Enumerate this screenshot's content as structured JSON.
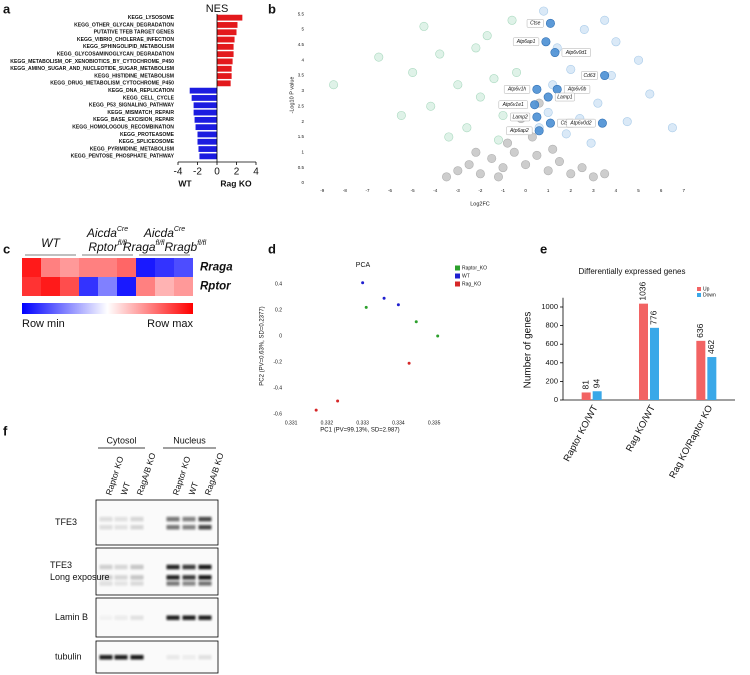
{
  "chart_data": [
    {
      "label": "a",
      "type": "bar",
      "orientation": "horizontal",
      "title": "NES",
      "categories": [
        "KEGG_LYSOSOME",
        "KEGG_OTHER_GLYCAN_DEGRADATION",
        "PUTATIVE TFEB TARGET GENES",
        "KEGG_VIBRIO_CHOLERAE_INFECTION",
        "KEGG_SPHINGOLIPID_METABOLISM",
        "KEGG_GLYCOSAMINOGLYCAN_DEGRADATION",
        "KEGG_METABOLISM_OF_XENOBIOTICS_BY_CYTOCHROME_P450",
        "KEGG_AMINO_SUGAR_AND_NUCLEOTIDE_SUGAR_METABOLISM",
        "KEGG_HISTIDINE_METABOLISM",
        "KEGG_DRUG_METABOLISM_CYTOCHROME_P450",
        "KEGG_DNA_REPLICATION",
        "KEGG_CELL_CYCLE",
        "KEGG_P53_SIGNALING_PATHWAY",
        "KEGG_MISMATCH_REPAIR",
        "KEGG_BASE_EXCISION_REPAIR",
        "KEGG_HOMOLOGOUS_RECOMBINATION",
        "KEGG_PROTEASOME",
        "KEGG_SPLICEOSOME",
        "KEGG_PYRIMIDINE_METABOLISM",
        "KEGG_PENTOSE_PHOSPHATE_PATHWAY"
      ],
      "values": [
        2.6,
        2.1,
        2.0,
        1.8,
        1.7,
        1.7,
        1.6,
        1.5,
        1.5,
        1.4,
        -2.8,
        -2.6,
        -2.4,
        -2.4,
        -2.3,
        -2.2,
        -2.0,
        -2.0,
        -1.9,
        -1.8
      ],
      "positive_color": "#e3191c",
      "negative_color": "#1c1ce0",
      "xlim": [
        -4,
        4
      ],
      "xticks": [
        -4,
        -2,
        0,
        2,
        4
      ],
      "annotations": [
        {
          "text": "WT",
          "color": "#1c1ce0"
        },
        {
          "text": "Rag KO",
          "color": "#e3191c"
        }
      ]
    },
    {
      "label": "b",
      "type": "scatter",
      "x_label": "Log2FC",
      "y_label": "-Log10 P value",
      "xlim": [
        -9.5,
        7.5
      ],
      "xticks": [
        -9,
        -8,
        -7,
        -6,
        -5,
        -4,
        -3,
        -2,
        -1,
        0,
        1,
        2,
        3,
        4,
        5,
        6,
        7
      ],
      "ylim": [
        0,
        5.7
      ],
      "yticks": [
        0,
        0.5,
        1,
        1.5,
        2,
        2.5,
        3,
        3.5,
        4,
        4.5,
        5,
        5.5
      ],
      "series": [
        {
          "color": "#c8c8c8",
          "edge_color": "#b0b0b0",
          "x": [
            -3,
            -2.5,
            -2,
            -1.5,
            -1,
            -0.5,
            0,
            0.5,
            1,
            1.5,
            2,
            2.5,
            3,
            -0.8,
            0.3,
            -0.2,
            0.6,
            -3.5,
            3.5,
            -1.2,
            1.2,
            -2.2
          ],
          "values": [
            0.4,
            0.6,
            0.3,
            0.8,
            0.5,
            1.0,
            0.6,
            0.9,
            0.4,
            0.7,
            0.3,
            0.5,
            0.2,
            1.3,
            1.5,
            2.1,
            2.6,
            0.2,
            0.3,
            0.2,
            1.1,
            1.0
          ]
        },
        {
          "color": "#dcf1e6",
          "edge_color": "#a9d9bf",
          "x": [
            -8.5,
            -6.5,
            -5,
            -4.2,
            -3.8,
            -3,
            -2.6,
            -2,
            -1.7,
            -1.4,
            -1,
            -0.6,
            -3.4,
            -2.2,
            -5.5,
            -1.2,
            -4.5,
            -0.4
          ],
          "values": [
            3.2,
            4.1,
            3.6,
            2.5,
            4.2,
            3.2,
            1.8,
            2.8,
            4.8,
            3.4,
            2.2,
            5.3,
            1.5,
            4.4,
            2.2,
            1.4,
            5.1,
            3.6
          ]
        },
        {
          "color": "#d6e7f6",
          "edge_color": "#a9cbe9",
          "x": [
            0.8,
            1.4,
            2,
            2.6,
            3.2,
            3.8,
            4.5,
            5.5,
            6.5,
            1,
            1.8,
            2.4,
            4,
            5,
            1.2,
            2.9,
            3.5,
            0.6
          ],
          "values": [
            5.6,
            4.4,
            3.7,
            5.0,
            2.6,
            3.5,
            2.0,
            2.9,
            1.8,
            2.3,
            1.6,
            2.1,
            4.6,
            4.0,
            3.2,
            1.3,
            5.3,
            1.8
          ]
        },
        {
          "color": "#4a8fd4",
          "edge_color": "#2f6fb3",
          "x": [
            1.1,
            0.9,
            1.3,
            3.5,
            0.5,
            1.4,
            1.0,
            0.4,
            0.5,
            1.1,
            3.4,
            0.6
          ],
          "values": [
            5.2,
            4.6,
            4.25,
            3.5,
            3.05,
            3.05,
            2.8,
            2.55,
            2.15,
            1.95,
            1.95,
            1.7
          ],
          "labels": [
            "Ctse",
            "Atp6ap1",
            "Atp6v0d1",
            "Cd63",
            "Atp6v1h",
            "Atp6v0b",
            "Lamp1",
            "Atp6v1e1",
            "Lamp2",
            "Ctsz",
            "Atp6v0d2",
            "Atp6ap2"
          ]
        }
      ]
    },
    {
      "label": "c",
      "type": "heatmap",
      "column_groups": [
        [
          [
            "WT"
          ]
        ],
        [
          [
            "Aicda",
            "Cre"
          ],
          [
            "Rptor",
            "fl/fl"
          ]
        ],
        [
          [
            "Aicda",
            "Cre"
          ],
          [
            "Rraga",
            "fl/fl",
            "Rragb",
            "fl/fl"
          ]
        ]
      ],
      "rows": [
        "Rraga",
        "Rptor"
      ],
      "values": [
        [
          0.9,
          0.5,
          0.4,
          0.5,
          0.5,
          0.6,
          -0.9,
          -0.8,
          -0.7
        ],
        [
          0.8,
          0.9,
          0.7,
          -0.8,
          -0.5,
          -0.9,
          0.5,
          0.3,
          0.4
        ]
      ],
      "clim": [
        -1,
        1
      ],
      "low_color": "#0000ff",
      "high_color": "#ff0000",
      "colorbar_labels": [
        "Row min",
        "Row max"
      ]
    },
    {
      "label": "d",
      "type": "scatter",
      "title": "PCA",
      "x_label": "PC1 (PV=99.13%, SD=2.987)",
      "y_label": "PC2 (PV=0.63%, SD=0.2377)",
      "xlim": [
        0.3308,
        0.3355
      ],
      "xticks": [
        0.331,
        0.332,
        0.333,
        0.334,
        0.335
      ],
      "ylim": [
        -0.6,
        0.45
      ],
      "yticks": [
        0.4,
        0.2,
        0,
        -0.2,
        -0.4,
        -0.6
      ],
      "series": [
        {
          "name": "Raptor_KO",
          "color": "#2ca02c",
          "x": [
            0.3331,
            0.3345,
            0.3351
          ],
          "values": [
            0.22,
            0.11,
            0.0
          ]
        },
        {
          "name": "WT",
          "color": "#1f1fcf",
          "x": [
            0.333,
            0.3336,
            0.334
          ],
          "values": [
            0.41,
            0.29,
            0.24
          ]
        },
        {
          "name": "Rag_KO",
          "color": "#d62728",
          "x": [
            0.3317,
            0.3323,
            0.3343
          ],
          "values": [
            -0.57,
            -0.5,
            -0.21
          ]
        }
      ]
    },
    {
      "label": "e",
      "type": "bar",
      "orientation": "vertical",
      "title": "Differentially expressed genes",
      "y_label": "Number of genes",
      "categories": [
        "Raptor KO/WT",
        "Rag KO/WT",
        "Rag KO/Raptor KO"
      ],
      "series": [
        {
          "name": "Up",
          "color": "#f26363",
          "values": [
            81,
            1036,
            636
          ]
        },
        {
          "name": "Down",
          "color": "#3aa8e8",
          "values": [
            94,
            776,
            462
          ]
        }
      ],
      "ylim": [
        0,
        1100
      ],
      "yticks": [
        0,
        200,
        400,
        600,
        800,
        1000
      ]
    }
  ],
  "blot": {
    "label": "f",
    "fractions": [
      "Cytosol",
      "Nucleus"
    ],
    "lanes": [
      "Raptor KO",
      "WT",
      "RagA/B KO"
    ],
    "rows": [
      [
        "TFE3"
      ],
      [
        "TFE3",
        "Long exposure"
      ],
      [
        "Lamin B"
      ],
      [
        "tubulin"
      ]
    ]
  }
}
